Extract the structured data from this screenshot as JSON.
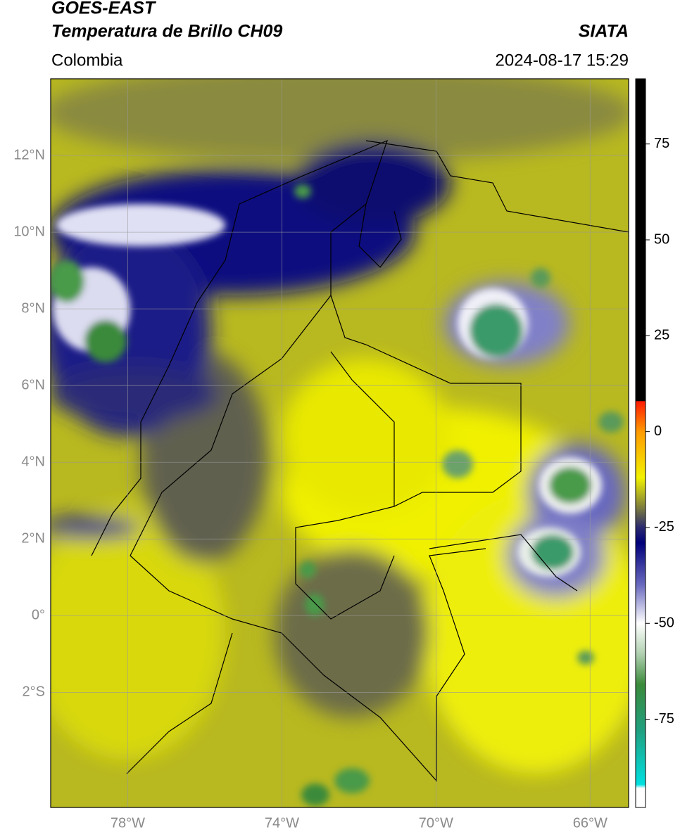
{
  "header": {
    "satellite": "GOES-EAST",
    "product": "Temperatura de Brillo CH09",
    "source": "SIATA",
    "region": "Colombia",
    "datetime": "2024-08-17 15:29"
  },
  "map": {
    "xlim": [
      -80,
      -65
    ],
    "ylim": [
      -5,
      14
    ],
    "xticks": [
      {
        "value": -78,
        "label": "78°W"
      },
      {
        "value": -74,
        "label": "74°W"
      },
      {
        "value": -70,
        "label": "70°W"
      },
      {
        "value": -66,
        "label": "66°W"
      }
    ],
    "yticks": [
      {
        "value": 12,
        "label": "12°N"
      },
      {
        "value": 10,
        "label": "10°N"
      },
      {
        "value": 8,
        "label": "8°N"
      },
      {
        "value": 6,
        "label": "6°N"
      },
      {
        "value": 4,
        "label": "4°N"
      },
      {
        "value": 2,
        "label": "2°N"
      },
      {
        "value": 0,
        "label": "0°"
      },
      {
        "value": -2,
        "label": "2°S"
      }
    ],
    "grid": true
  },
  "colorbar": {
    "lim": [
      -98,
      92
    ],
    "ticks": [
      75,
      50,
      25,
      0,
      -25,
      -50,
      -75
    ],
    "stops": [
      {
        "value": 92,
        "color": "#000000"
      },
      {
        "value": 8,
        "color": "#000000"
      },
      {
        "value": 7.9,
        "color": "#ff1a00"
      },
      {
        "value": 0,
        "color": "#ff9a00"
      },
      {
        "value": -12,
        "color": "#f2f200"
      },
      {
        "value": -20,
        "color": "#7a7a40"
      },
      {
        "value": -25,
        "color": "#2a2a70"
      },
      {
        "value": -29,
        "color": "#00007a"
      },
      {
        "value": -40,
        "color": "#6a6ac0"
      },
      {
        "value": -50,
        "color": "#ffffff"
      },
      {
        "value": -58,
        "color": "#b0d0b0"
      },
      {
        "value": -66,
        "color": "#3a8a3a"
      },
      {
        "value": -78,
        "color": "#20a080"
      },
      {
        "value": -92,
        "color": "#00e0e0"
      },
      {
        "value": -93,
        "color": "#ffffff"
      },
      {
        "value": -98,
        "color": "#ffffff"
      }
    ]
  }
}
